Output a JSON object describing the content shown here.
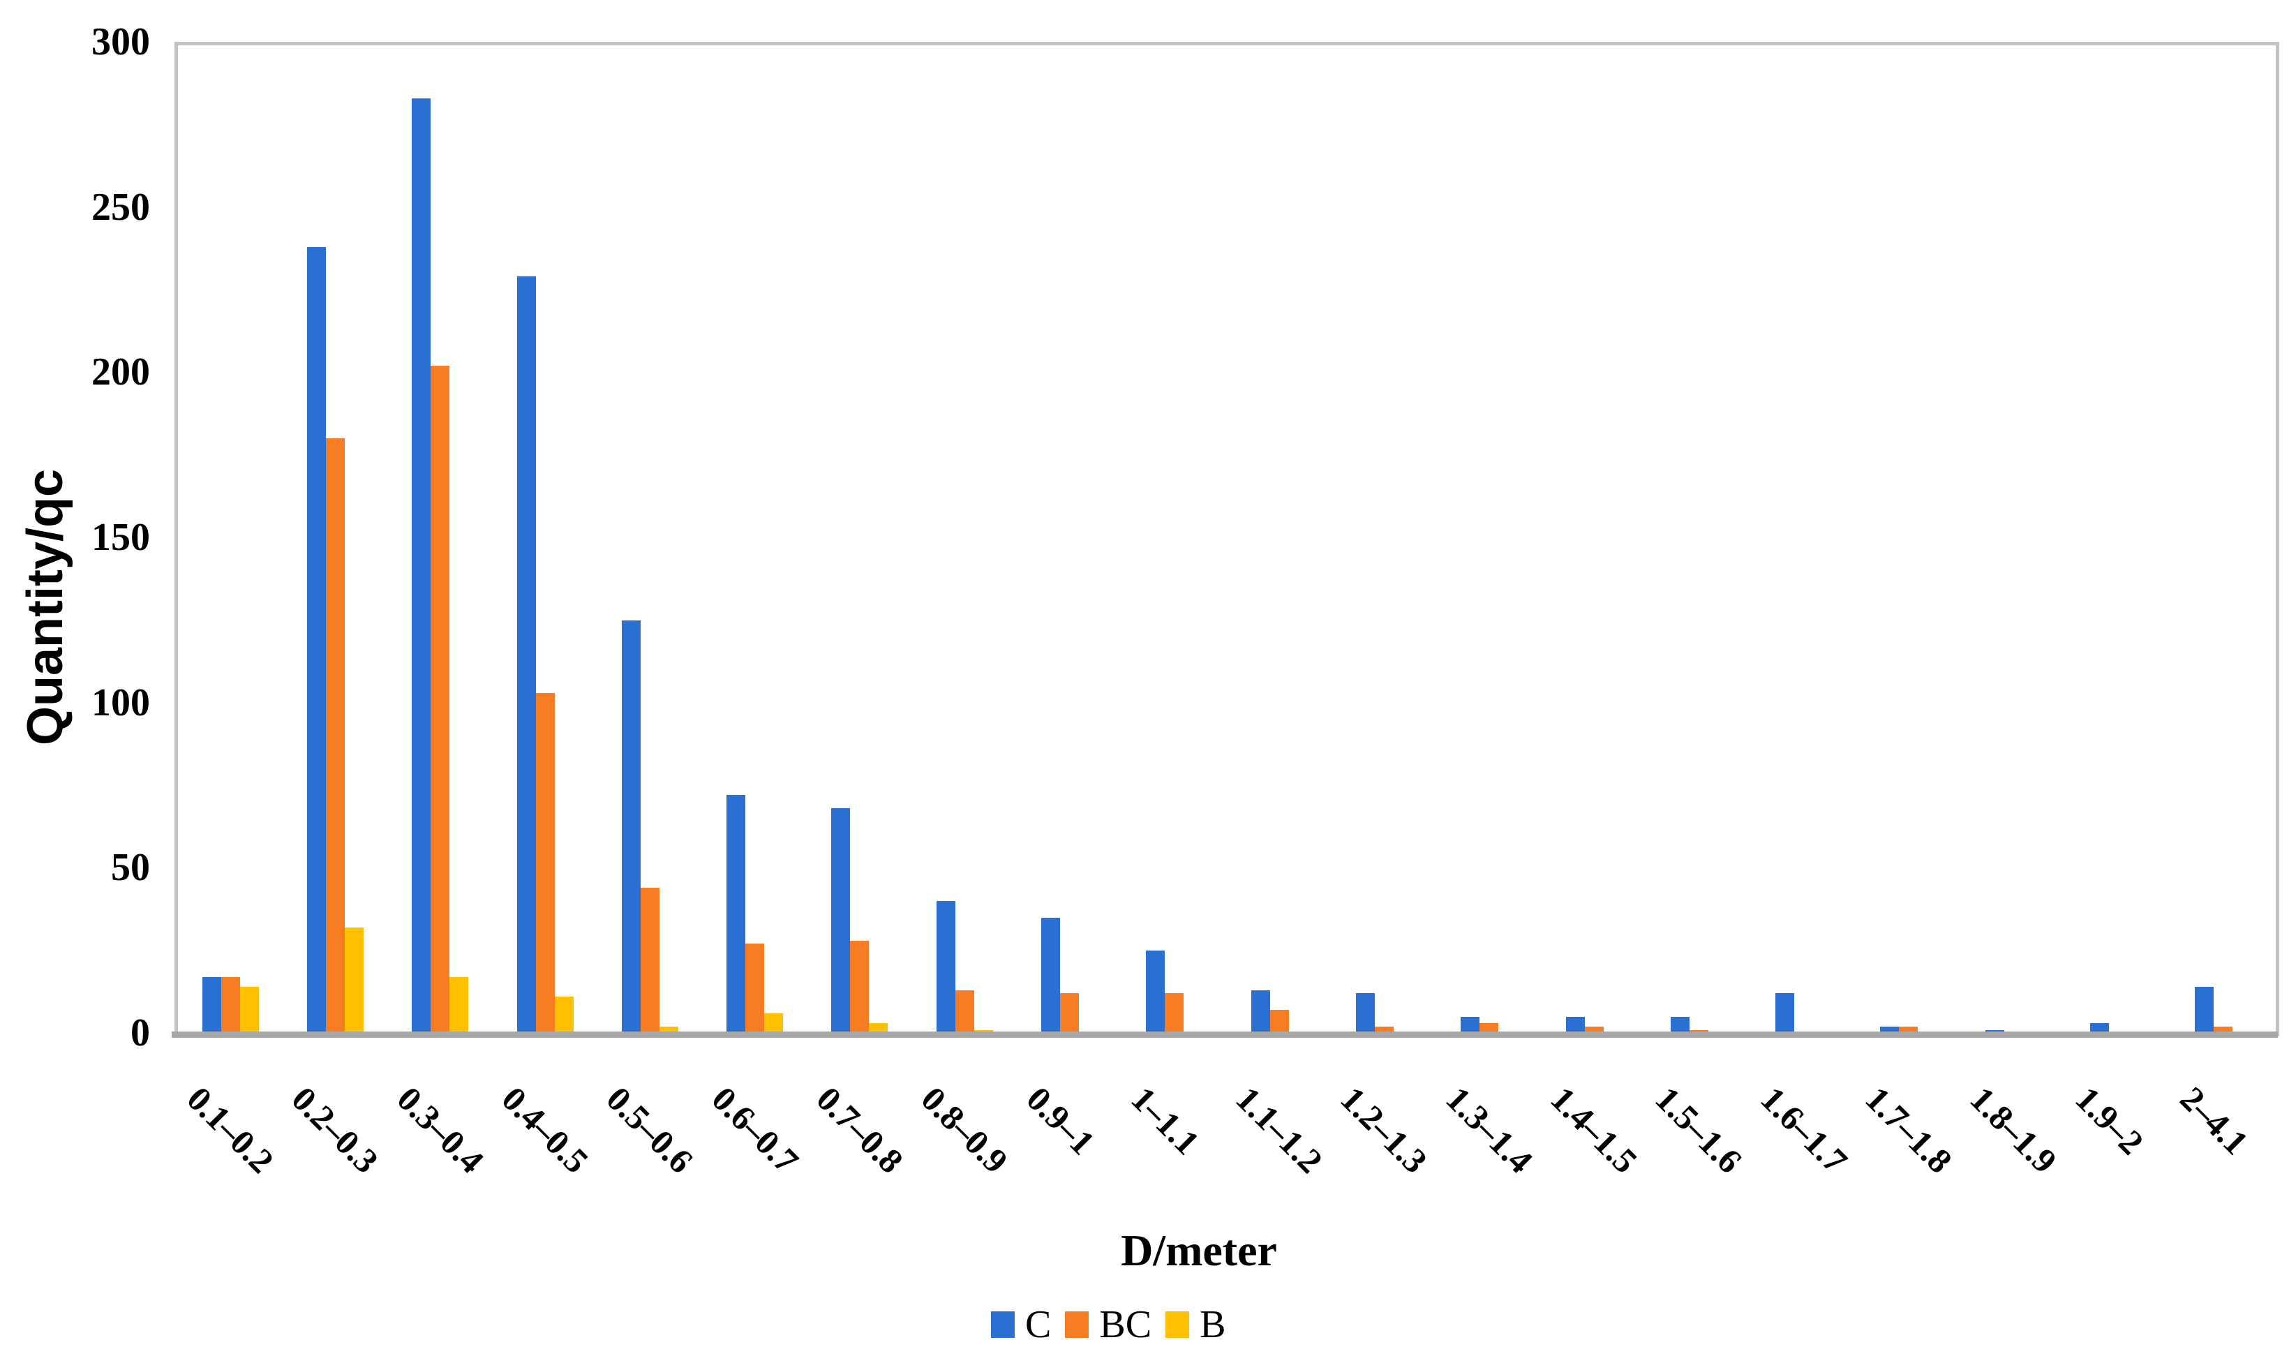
{
  "chart_data": {
    "type": "bar",
    "title": "",
    "ylabel": "Quantity/qc",
    "xlabel": "D/meter",
    "ylim": [
      0,
      300
    ],
    "yticks": [
      0,
      50,
      100,
      150,
      200,
      250,
      300
    ],
    "grid": false,
    "legend_position": "bottom",
    "background_color": "#FFFFFF",
    "frame_color": "#C3C3C3",
    "baseline_color": "#A8A8A8",
    "categories": [
      "0.1–0.2",
      "0.2–0.3",
      "0.3–0.4",
      "0.4–0.5",
      "0.5–0.6",
      "0.6–0.7",
      "0.7–0.8",
      "0.8–0.9",
      "0.9–1",
      "1–1.1",
      "1.1–1.2",
      "1.2–1.3",
      "1.3–1.4",
      "1.4–1.5",
      "1.5–1.6",
      "1.6–1.7",
      "1.7–1.8",
      "1.8–1.9",
      "1.9–2",
      "2–4.1"
    ],
    "series": [
      {
        "name": "C",
        "color": "#2A70D2",
        "values": [
          18,
          239,
          284,
          230,
          126,
          73,
          69,
          41,
          36,
          26,
          14,
          13,
          6,
          6,
          6,
          13,
          3,
          2,
          4,
          15
        ]
      },
      {
        "name": "BC",
        "color": "#F87D22",
        "values": [
          18,
          181,
          203,
          104,
          45,
          28,
          29,
          14,
          13,
          13,
          8,
          3,
          4,
          3,
          2,
          1,
          3,
          1,
          1,
          3
        ]
      },
      {
        "name": "B",
        "color": "#FFC002",
        "values": [
          15,
          33,
          18,
          12,
          3,
          7,
          4,
          2,
          1,
          1,
          0,
          1,
          0,
          0,
          0,
          0,
          0,
          0,
          0,
          0
        ]
      }
    ]
  }
}
